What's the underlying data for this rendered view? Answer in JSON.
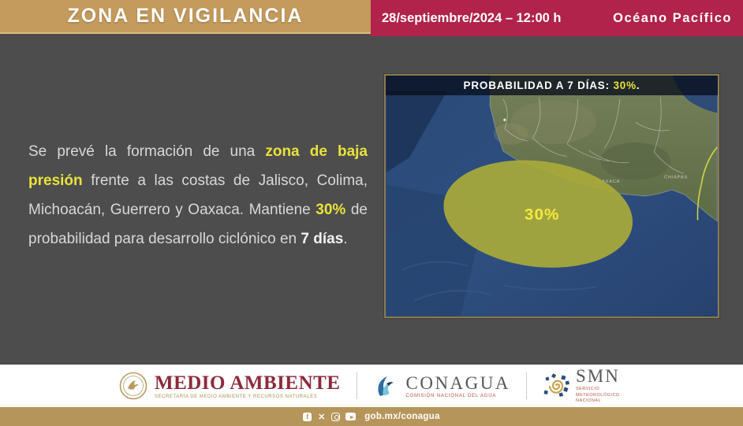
{
  "header": {
    "title": "ZONA EN VIGILANCIA",
    "datetime": "28/septiembre/2024 – 12:00 h",
    "region": "Océano Pacífico"
  },
  "advisory": {
    "segments": [
      {
        "text": "Se prevé la formación de una ",
        "style": "normal"
      },
      {
        "text": "zona de baja presión",
        "style": "highlight"
      },
      {
        "text": " frente a las costas de Jalisco, Colima, Michoacán, Guerrero y Oaxaca. Mantiene ",
        "style": "normal"
      },
      {
        "text": "30%",
        "style": "highlight"
      },
      {
        "text": " de probabilidad para desarrollo ciclónico en ",
        "style": "normal"
      },
      {
        "text": "7 días",
        "style": "bold"
      },
      {
        "text": ".",
        "style": "normal"
      }
    ]
  },
  "map": {
    "title_prefix": "PROBABILIDAD A 7 DÍAS: ",
    "title_value": "30%",
    "title_suffix": ".",
    "ellipse_label": "30%",
    "state_labels": [
      "OAXACA",
      "CHIAPAS"
    ]
  },
  "footer": {
    "agencies": [
      {
        "name": "MEDIO AMBIENTE",
        "subtitle": "SECRETARÍA DE MEDIO AMBIENTE Y RECURSOS NATURALES"
      },
      {
        "name": "CONAGUA",
        "subtitle": "COMISIÓN NACIONAL DEL AGUA"
      },
      {
        "name": "SMN",
        "subtitle": "SERVICIO METEOROLÓGICO NACIONAL"
      }
    ]
  },
  "bottom_bar": {
    "url": "gob.mx/conagua",
    "social_icons": [
      "facebook-icon",
      "x-icon",
      "instagram-icon",
      "youtube-icon"
    ]
  },
  "colors": {
    "header_gold": "#c49b5c",
    "header_crimson": "#b12348",
    "panel_gray": "#4d4d4d",
    "highlight_yellow": "#e9e23b",
    "ellipse_olive": "#a9aa3a",
    "bottom_gold": "#b6955a",
    "brand_red": "#8c2b3c"
  }
}
